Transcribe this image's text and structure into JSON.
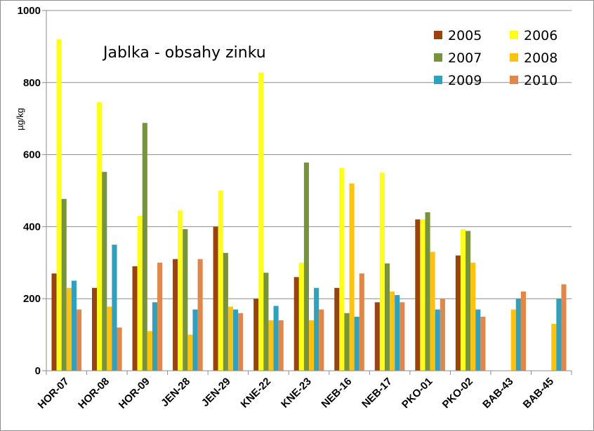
{
  "chart_data": {
    "type": "bar",
    "title": "Jablka - obsahy zinku",
    "xlabel": "",
    "ylabel": "µg/kg",
    "ylim": [
      0,
      1000
    ],
    "yticks": [
      0,
      200,
      400,
      600,
      800,
      1000
    ],
    "grid": true,
    "legend_position": "top-right",
    "categories": [
      "HOR-07",
      "HOR-08",
      "HOR-09",
      "JEN-28",
      "JEN-29",
      "KNE-22",
      "KNE-23",
      "NEB-16",
      "NEB-17",
      "PKO-01",
      "PKO-02",
      "BAB-43",
      "BAB-45"
    ],
    "series": [
      {
        "name": "2005",
        "color": "#99430f",
        "values": [
          270,
          230,
          290,
          310,
          400,
          200,
          260,
          230,
          190,
          420,
          320,
          null,
          null
        ]
      },
      {
        "name": "2006",
        "color": "#ffff1a",
        "values": [
          920,
          745,
          430,
          445,
          500,
          828,
          300,
          563,
          550,
          420,
          393,
          null,
          null
        ]
      },
      {
        "name": "2007",
        "color": "#77933c",
        "values": [
          477,
          552,
          688,
          393,
          327,
          272,
          578,
          160,
          298,
          440,
          388,
          null,
          null
        ]
      },
      {
        "name": "2008",
        "color": "#ffc20e",
        "values": [
          230,
          178,
          110,
          100,
          178,
          140,
          140,
          520,
          220,
          330,
          300,
          170,
          130
        ]
      },
      {
        "name": "2009",
        "color": "#31a0bd",
        "values": [
          250,
          350,
          190,
          170,
          170,
          180,
          230,
          150,
          210,
          170,
          170,
          200,
          200
        ]
      },
      {
        "name": "2010",
        "color": "#e0874c",
        "values": [
          170,
          120,
          300,
          310,
          160,
          140,
          170,
          270,
          190,
          200,
          150,
          220,
          240
        ]
      }
    ]
  }
}
